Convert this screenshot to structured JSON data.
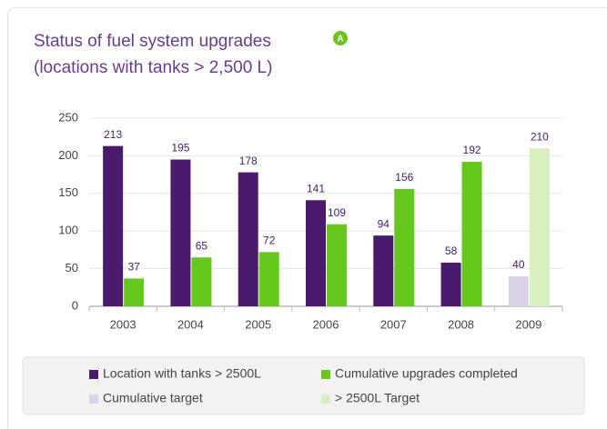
{
  "chart_data": {
    "type": "bar",
    "title": "Status of fuel system upgrades",
    "subtitle": "(locations with tanks > 2,500 L)",
    "badge": "A",
    "categories": [
      "2003",
      "2004",
      "2005",
      "2006",
      "2007",
      "2008",
      "2009"
    ],
    "series": [
      {
        "name": "Location with tanks > 2500L",
        "color": "#4a1a6c",
        "values": [
          213,
          195,
          178,
          141,
          94,
          58,
          null
        ]
      },
      {
        "name": "Cumulative upgrades completed",
        "color": "#66c81c",
        "values": [
          37,
          65,
          72,
          109,
          156,
          192,
          null
        ]
      },
      {
        "name": "Cumulative target",
        "color": "#ddd3e6",
        "values": [
          null,
          null,
          null,
          null,
          null,
          null,
          40
        ]
      },
      {
        "name": "> 2500L Target",
        "color": "#d8f0c0",
        "values": [
          null,
          null,
          null,
          null,
          null,
          null,
          210
        ]
      }
    ],
    "ylim": [
      0,
      250
    ],
    "yticks": [
      0,
      50,
      100,
      150,
      200,
      250
    ],
    "grid": true
  }
}
